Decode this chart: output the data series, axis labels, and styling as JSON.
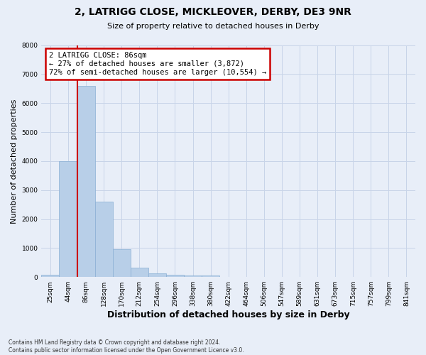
{
  "title_line1": "2, LATRIGG CLOSE, MICKLEOVER, DERBY, DE3 9NR",
  "title_line2": "Size of property relative to detached houses in Derby",
  "xlabel": "Distribution of detached houses by size in Derby",
  "ylabel": "Number of detached properties",
  "categories": [
    "25sqm",
    "44sqm",
    "86sqm",
    "128sqm",
    "170sqm",
    "212sqm",
    "254sqm",
    "296sqm",
    "338sqm",
    "380sqm",
    "422sqm",
    "464sqm",
    "506sqm",
    "547sqm",
    "589sqm",
    "631sqm",
    "673sqm",
    "715sqm",
    "757sqm",
    "799sqm",
    "841sqm"
  ],
  "bar_heights": [
    70,
    4000,
    6600,
    2600,
    950,
    320,
    130,
    80,
    55,
    55,
    0,
    0,
    0,
    0,
    0,
    0,
    0,
    0,
    0,
    0,
    0
  ],
  "bar_color": "#b8cfe8",
  "bar_edgecolor": "#8aafd4",
  "grid_color": "#c8d4e8",
  "vline_index": 2,
  "vline_color": "#cc0000",
  "annotation_text": "2 LATRIGG CLOSE: 86sqm\n← 27% of detached houses are smaller (3,872)\n72% of semi-detached houses are larger (10,554) →",
  "annotation_box_color": "#ffffff",
  "annotation_box_edgecolor": "#cc0000",
  "ylim": [
    0,
    8000
  ],
  "yticks": [
    0,
    1000,
    2000,
    3000,
    4000,
    5000,
    6000,
    7000,
    8000
  ],
  "footer_line1": "Contains HM Land Registry data © Crown copyright and database right 2024.",
  "footer_line2": "Contains public sector information licensed under the Open Government Licence v3.0.",
  "background_color": "#e8eef8",
  "plot_background_color": "#e8eef8",
  "title_fontsize": 10,
  "subtitle_fontsize": 8,
  "xlabel_fontsize": 9,
  "ylabel_fontsize": 8,
  "tick_fontsize": 6.5,
  "footer_fontsize": 5.5
}
